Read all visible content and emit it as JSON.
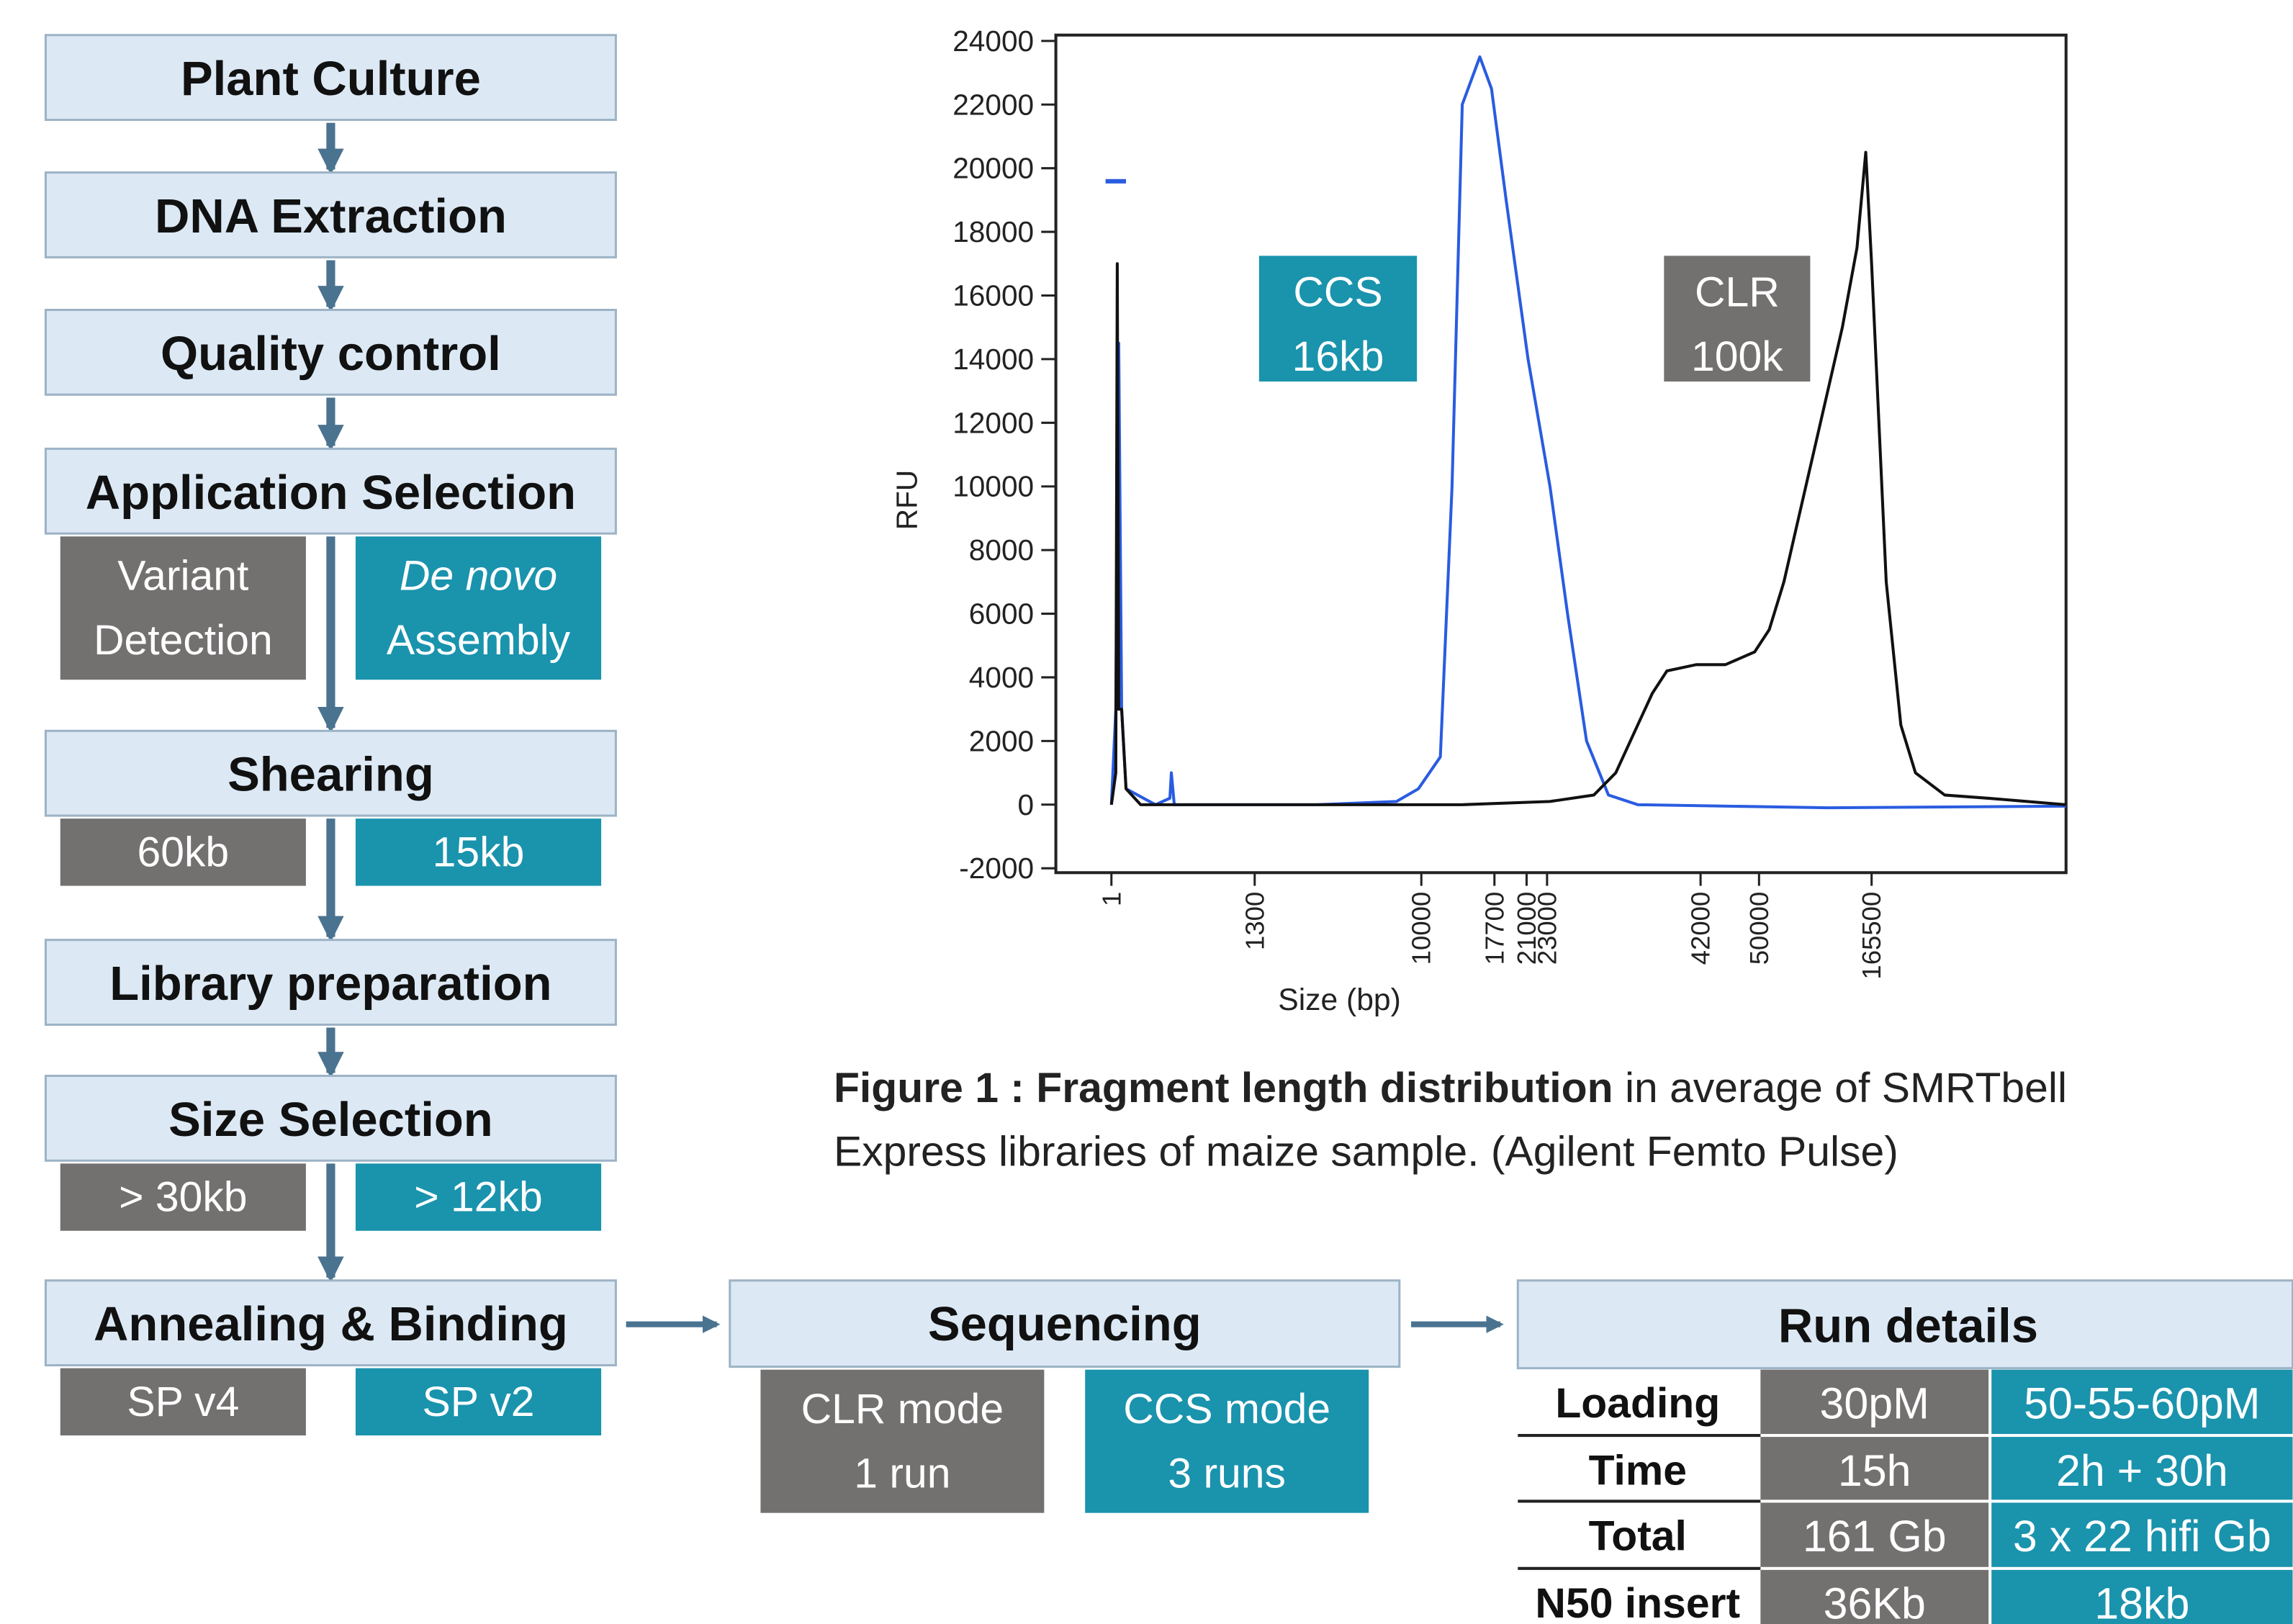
{
  "flowchart": {
    "steps": [
      {
        "label": "Plant Culture"
      },
      {
        "label": "DNA Extraction"
      },
      {
        "label": "Quality control"
      },
      {
        "label": "Application Selection",
        "options": [
          [
            "Variant",
            "Detection"
          ],
          [
            "De novo",
            "Assembly"
          ]
        ]
      },
      {
        "label": "Shearing",
        "options": [
          [
            "60kb"
          ],
          [
            "15kb"
          ]
        ]
      },
      {
        "label": "Library preparation"
      },
      {
        "label": "Size Selection",
        "options": [
          [
            "> 30kb"
          ],
          [
            "> 12kb"
          ]
        ]
      },
      {
        "label": "Annealing & Binding",
        "options": [
          [
            "SP v4"
          ],
          [
            "SP v2"
          ]
        ]
      }
    ],
    "sequencing": {
      "label": "Sequencing",
      "options": [
        [
          "CLR mode",
          "1 run"
        ],
        [
          "CCS mode",
          "3 runs"
        ]
      ]
    }
  },
  "table": {
    "title": "Run details",
    "rows": [
      [
        "Loading",
        "30pM",
        "50-55-60pM"
      ],
      [
        "Time",
        "15h",
        "2h + 30h"
      ],
      [
        "Total",
        "161 Gb",
        "3 x 22 hifi Gb"
      ],
      [
        "N50 insert",
        "36Kb",
        "18kb"
      ]
    ]
  },
  "caption": {
    "bold": "Figure 1 : Fragment length distribution",
    "text": " in average of SMRTbell",
    "text2": "Express libraries of maize sample. (Agilent Femto Pulse)"
  },
  "chart_data": {
    "type": "line",
    "ylabel": "RFU",
    "xlabel": "Size (bp)",
    "ylim": [
      -2000,
      24000
    ],
    "yticks": [
      -2000,
      0,
      2000,
      4000,
      6000,
      8000,
      10000,
      12000,
      14000,
      16000,
      18000,
      20000,
      22000,
      24000
    ],
    "xticks": [
      1,
      1300,
      10000,
      17700,
      21000,
      23000,
      42000,
      50000,
      165500
    ],
    "annotations": [
      {
        "lines": [
          "CCS",
          "16kb"
        ],
        "color": "#1a93ad"
      },
      {
        "lines": [
          "CLR",
          "100k"
        ],
        "color": "#737070"
      }
    ],
    "series": [
      {
        "color": "#2a5ce0",
        "x": [
          1,
          41,
          67,
          94,
          134,
          400,
          531,
          545,
          571,
          4505,
          8701,
          9847,
          12000,
          13234,
          14312,
          15544,
          16160,
          17392,
          18900,
          21143,
          23362,
          25534,
          27887,
          30602,
          34222,
          120500,
          365000
        ],
        "values": [
          0,
          3000,
          14500,
          3000,
          500,
          0,
          200,
          1000,
          0,
          0,
          100,
          500,
          1500,
          10000,
          22000,
          23000,
          23500,
          22500,
          19000,
          14000,
          10000,
          6000,
          2000,
          300,
          0,
          -100,
          -50
        ]
      },
      {
        "color": "#111111",
        "x": [
          1,
          41,
          54,
          67,
          94,
          134,
          266,
          14312,
          23362,
          28792,
          31507,
          34222,
          36032,
          37842,
          41462,
          45400,
          49400,
          60500,
          75500,
          90500,
          105500,
          120500,
          135500,
          150500,
          159500,
          165500,
          173000,
          180500,
          195500,
          210500,
          240500,
          285500,
          365000
        ],
        "values": [
          0,
          1000,
          17000,
          3000,
          3000,
          500,
          0,
          0,
          100,
          300,
          1000,
          2500,
          3500,
          4200,
          4400,
          4400,
          4800,
          5500,
          7000,
          9000,
          11000,
          13000,
          15000,
          17500,
          20500,
          17000,
          12000,
          7000,
          2500,
          1000,
          300,
          200,
          0
        ]
      }
    ]
  }
}
